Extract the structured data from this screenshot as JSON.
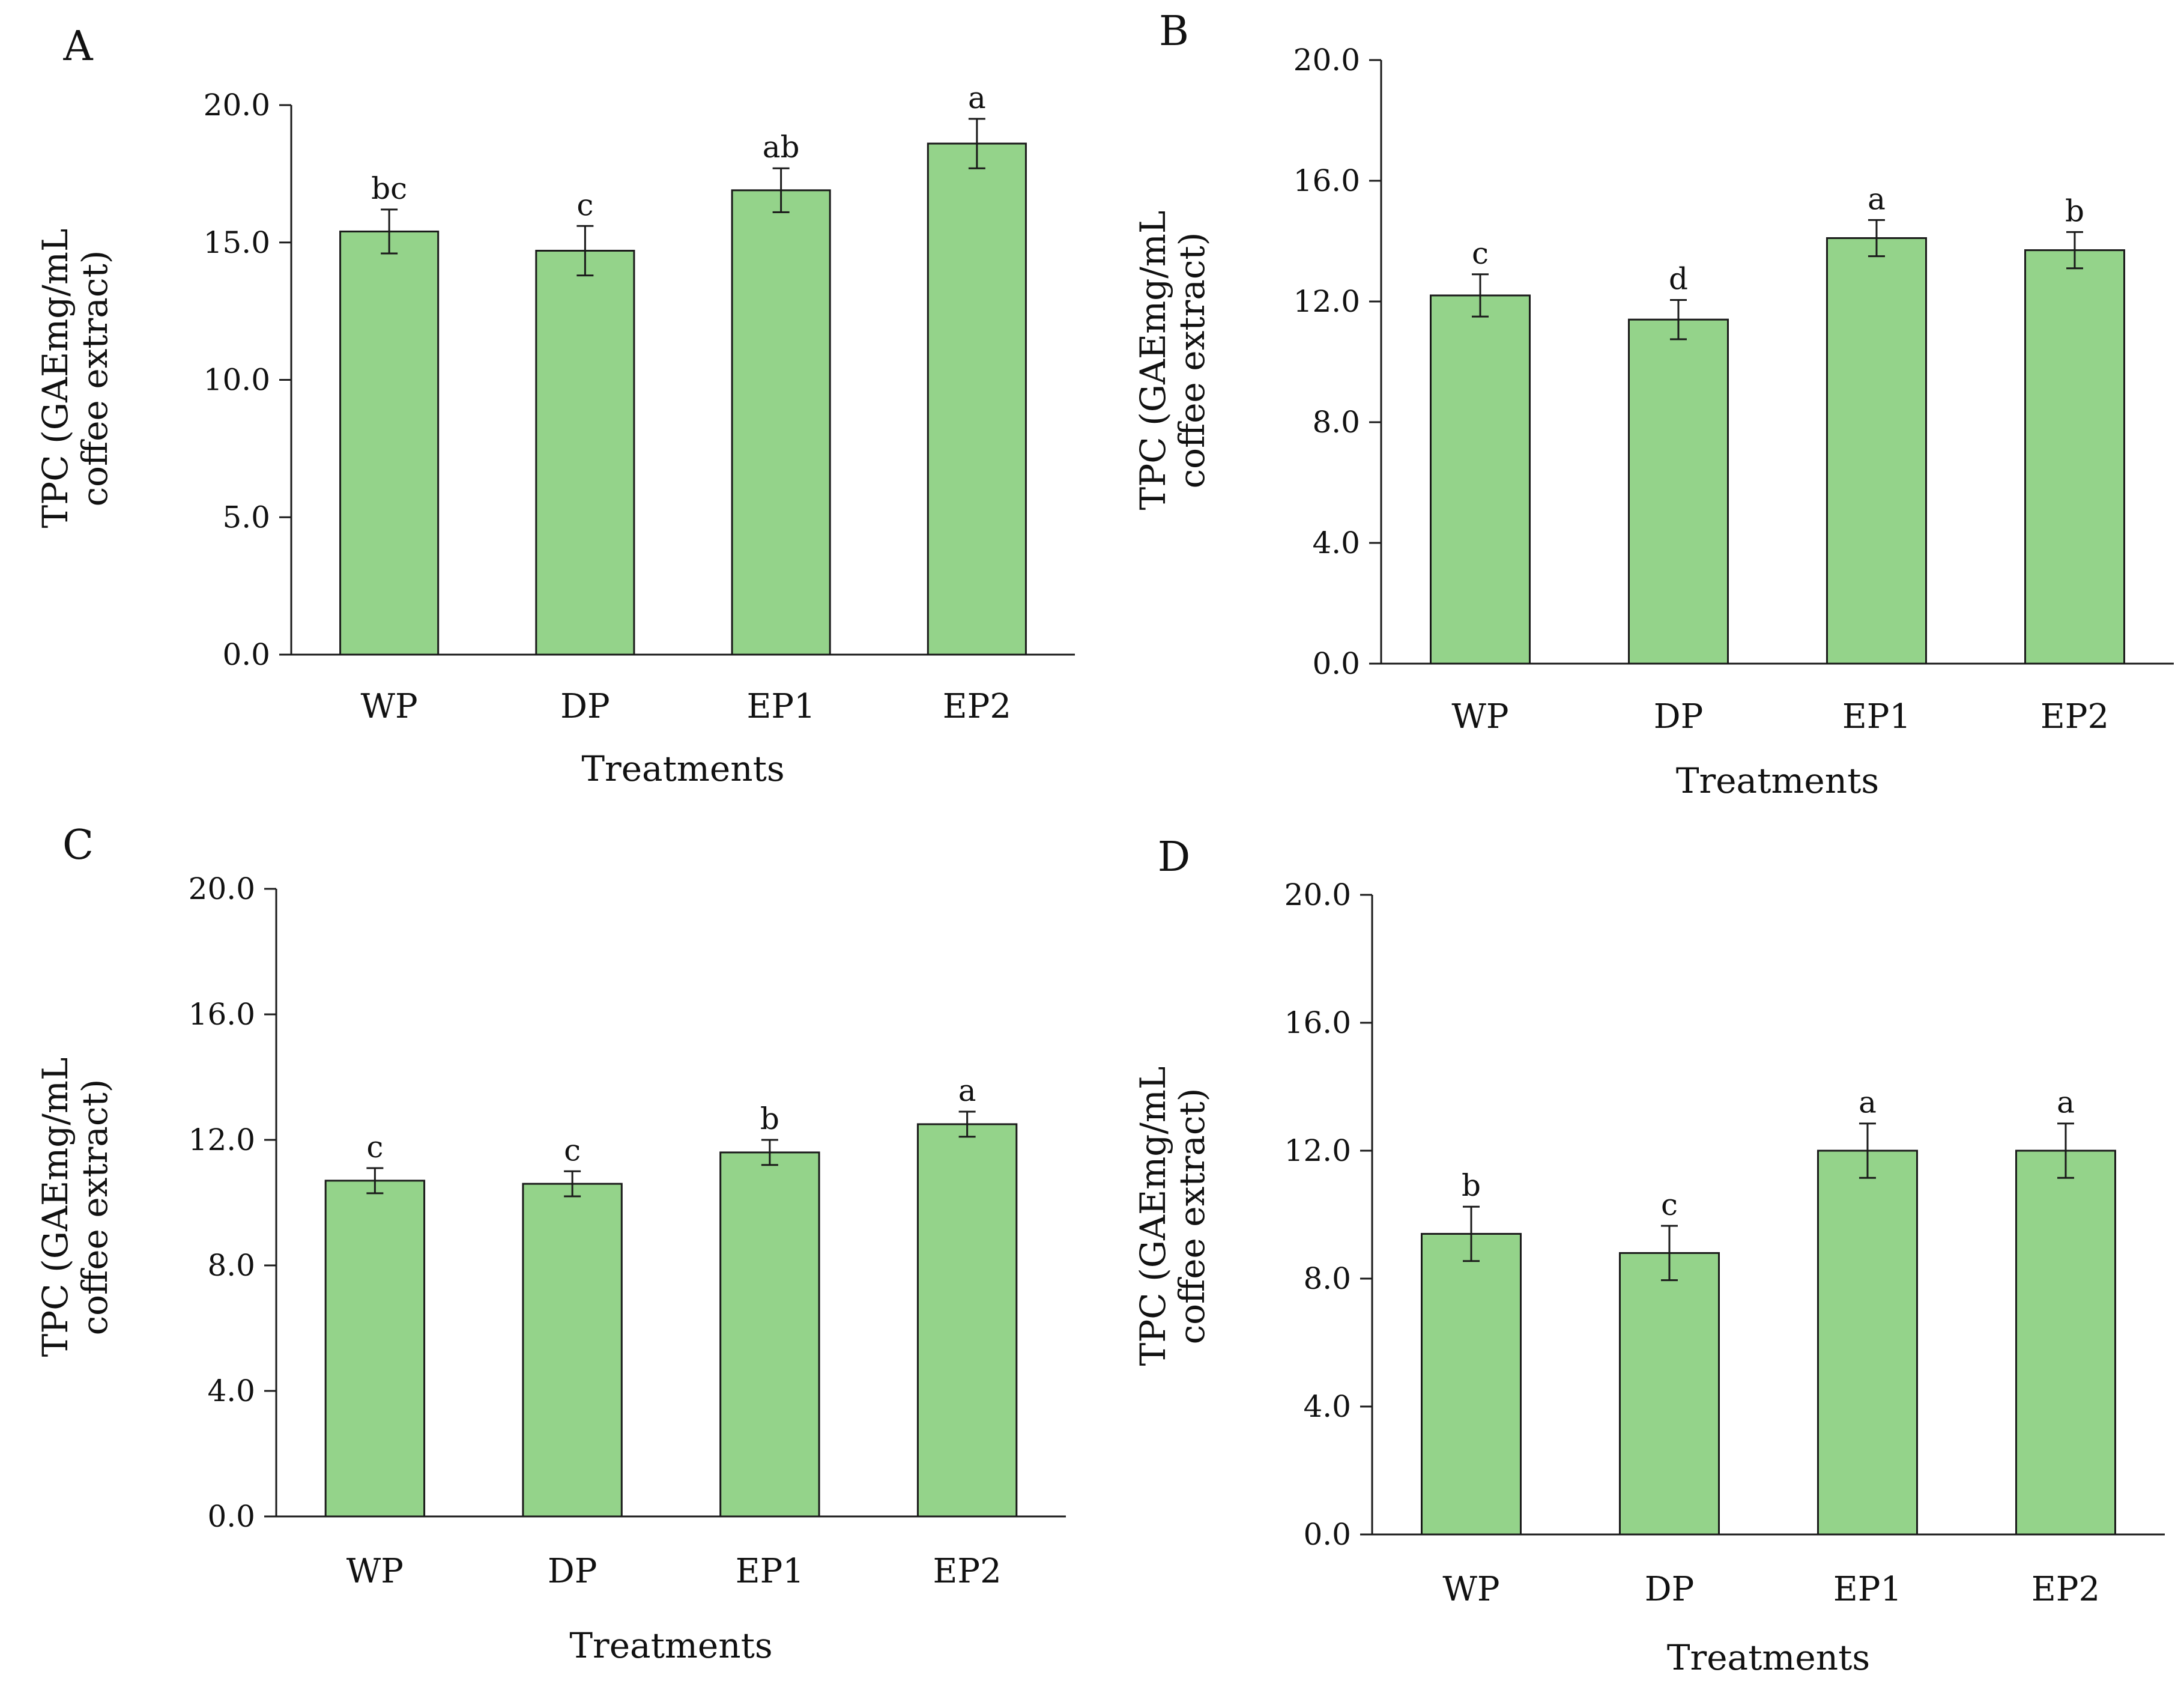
{
  "figure": {
    "accent_bar_color": "#94D38A",
    "bar_edge_color": "#1a1a1a"
  },
  "chart_data": [
    {
      "panel": "A",
      "type": "bar",
      "categories": [
        "WP",
        "DP",
        "EP1",
        "EP2"
      ],
      "values": [
        15.4,
        14.7,
        16.9,
        18.6
      ],
      "errors": [
        0.8,
        0.9,
        0.8,
        0.9
      ],
      "significance": [
        "bc",
        "c",
        "ab",
        "a"
      ],
      "xlabel": "Treatments",
      "ylabel_line1": "TPC (GAEmg/mL",
      "ylabel_line2": "coffee extract)",
      "ylim": [
        0,
        20
      ],
      "yticks": [
        "0.0",
        "5.0",
        "10.0",
        "15.0",
        "20.0"
      ]
    },
    {
      "panel": "B",
      "type": "bar",
      "categories": [
        "WP",
        "DP",
        "EP1",
        "EP2"
      ],
      "values": [
        12.2,
        11.4,
        14.1,
        13.7
      ],
      "errors": [
        0.7,
        0.65,
        0.6,
        0.6
      ],
      "significance": [
        "c",
        "d",
        "a",
        "b"
      ],
      "xlabel": "Treatments",
      "ylabel_line1": "TPC (GAEmg/mL",
      "ylabel_line2": "coffee extract)",
      "ylim": [
        0,
        20
      ],
      "yticks": [
        "0.0",
        "4.0",
        "8.0",
        "12.0",
        "16.0",
        "20.0"
      ]
    },
    {
      "panel": "C",
      "type": "bar",
      "categories": [
        "WP",
        "DP",
        "EP1",
        "EP2"
      ],
      "values": [
        10.7,
        10.6,
        11.6,
        12.5
      ],
      "errors": [
        0.4,
        0.4,
        0.4,
        0.4
      ],
      "significance": [
        "c",
        "c",
        "b",
        "a"
      ],
      "xlabel": "Treatments",
      "ylabel_line1": "TPC (GAEmg/mL",
      "ylabel_line2": "coffee extract)",
      "ylim": [
        0,
        20
      ],
      "yticks": [
        "0.0",
        "4.0",
        "8.0",
        "12.0",
        "16.0",
        "20.0"
      ]
    },
    {
      "panel": "D",
      "type": "bar",
      "categories": [
        "WP",
        "DP",
        "EP1",
        "EP2"
      ],
      "values": [
        9.4,
        8.8,
        12.0,
        12.0
      ],
      "errors": [
        0.85,
        0.85,
        0.85,
        0.85
      ],
      "significance": [
        "b",
        "c",
        "a",
        "a"
      ],
      "xlabel": "Treatments",
      "ylabel_line1": "TPC (GAEmg/mL",
      "ylabel_line2": "coffee extract)",
      "ylim": [
        0,
        20
      ],
      "yticks": [
        "0.0",
        "4.0",
        "8.0",
        "12.0",
        "16.0",
        "20.0"
      ]
    }
  ]
}
